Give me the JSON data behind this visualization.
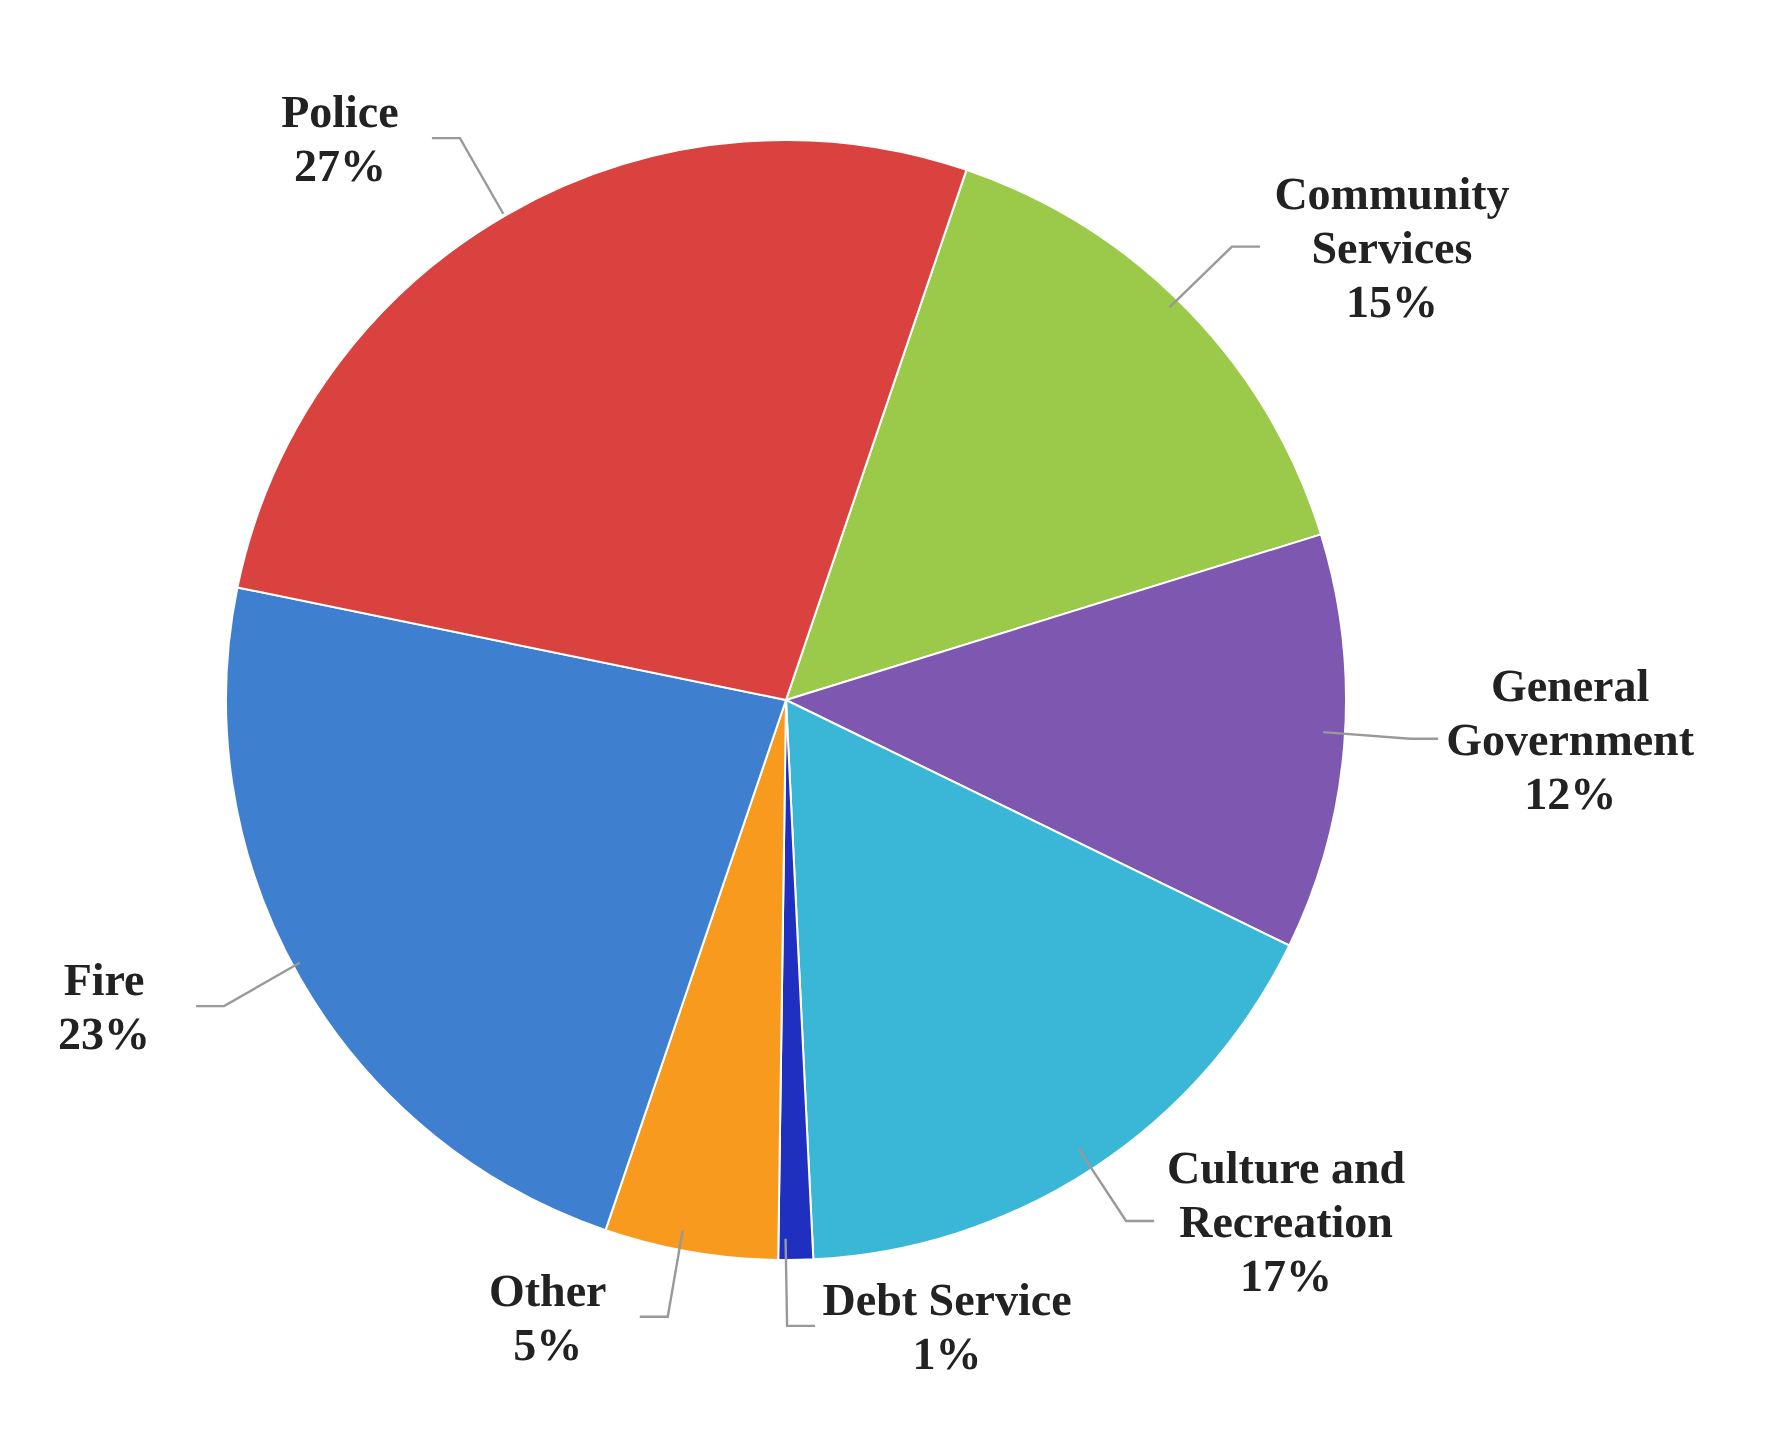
{
  "chart_data": {
    "type": "pie",
    "categories": [
      "Community Services",
      "General Government",
      "Culture and Recreation",
      "Debt Service",
      "Other",
      "Fire",
      "Police"
    ],
    "values": [
      15,
      12,
      17,
      1,
      5,
      23,
      27
    ],
    "value_labels": [
      "15%",
      "12%",
      "17%",
      "1%",
      "5%",
      "23%",
      "27%"
    ],
    "colors": [
      "#9bc94a",
      "#7e57b0",
      "#3ab6d6",
      "#1f2fc0",
      "#f79a1e",
      "#3f7fd0",
      "#d9423f"
    ],
    "legend": false
  }
}
